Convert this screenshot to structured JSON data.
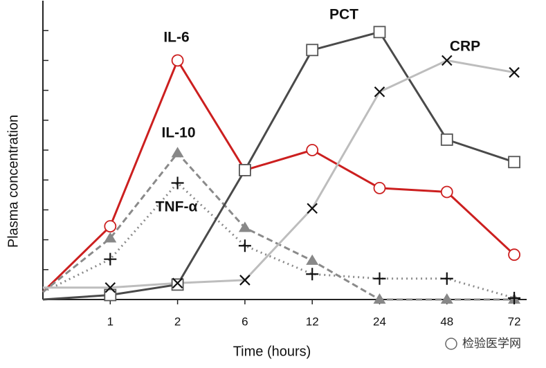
{
  "chart_data": {
    "type": "line",
    "y_label": "Plasma concentration",
    "x_label": "Time (hours)",
    "categories": [
      null,
      "1",
      "2",
      "6",
      "12",
      "24",
      "48",
      "72"
    ],
    "ylim": [
      0,
      10
    ],
    "yticks": [
      0,
      1,
      2,
      3,
      4,
      5,
      6,
      7,
      8,
      9
    ],
    "series": [
      {
        "name": "IL-6",
        "color": "#cc1f1f",
        "marker": "circle",
        "dash": "solid",
        "values": [
          0.25,
          2.45,
          8.0,
          4.33,
          5.0,
          3.73,
          3.6,
          1.5
        ]
      },
      {
        "name": "IL-10",
        "color": "#8a8a8a",
        "marker": "triangle",
        "dash": "dashed",
        "values": [
          0.25,
          2.05,
          4.9,
          2.4,
          1.3,
          0,
          0,
          0
        ]
      },
      {
        "name": "TNF-α",
        "color": "#8a8a8a",
        "marker": "plus",
        "dash": "dotted",
        "values": [
          0.25,
          1.35,
          3.9,
          1.8,
          0.85,
          0.7,
          0.7,
          0.05
        ]
      },
      {
        "name": "PCT",
        "color": "#4a4a4a",
        "marker": "square",
        "dash": "solid",
        "values": [
          0,
          0.15,
          0.5,
          4.33,
          8.35,
          8.95,
          5.35,
          4.6
        ]
      },
      {
        "name": "CRP",
        "color": "#bdbdbd",
        "marker": "cross",
        "dash": "solid",
        "values": [
          0.4,
          0.4,
          0.55,
          0.65,
          3.05,
          6.95,
          8.0,
          7.6
        ]
      }
    ]
  },
  "watermark": "检验医学网"
}
